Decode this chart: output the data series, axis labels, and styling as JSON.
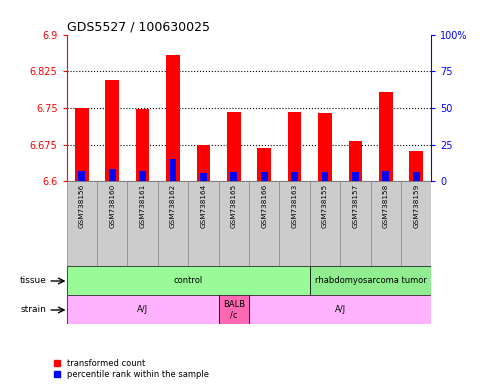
{
  "title": "GDS5527 / 100630025",
  "samples": [
    "GSM738156",
    "GSM738160",
    "GSM738161",
    "GSM738162",
    "GSM738164",
    "GSM738165",
    "GSM738166",
    "GSM738163",
    "GSM738155",
    "GSM738157",
    "GSM738158",
    "GSM738159"
  ],
  "red_values": [
    6.75,
    6.807,
    6.748,
    6.858,
    6.675,
    6.742,
    6.668,
    6.742,
    6.74,
    6.683,
    6.782,
    6.663
  ],
  "blue_values": [
    6.622,
    6.625,
    6.622,
    6.645,
    6.618,
    6.62,
    6.619,
    6.62,
    6.619,
    6.619,
    6.621,
    6.619
  ],
  "y_min": 6.6,
  "y_max": 6.9,
  "y_ticks_left": [
    6.6,
    6.675,
    6.75,
    6.825,
    6.9
  ],
  "y_ticks_right": [
    0,
    25,
    50,
    75,
    100
  ],
  "hlines": [
    6.675,
    6.75,
    6.825
  ],
  "tissue_items": [
    {
      "label": "control",
      "start": 0,
      "end": 8,
      "color": "#98FB98"
    },
    {
      "label": "rhabdomyosarcoma tumor",
      "start": 8,
      "end": 12,
      "color": "#90EE90"
    }
  ],
  "strain_items": [
    {
      "label": "A/J",
      "start": 0,
      "end": 5,
      "color": "#FFB3FF"
    },
    {
      "label": "BALB\n/c",
      "start": 5,
      "end": 6,
      "color": "#FF69B4"
    },
    {
      "label": "A/J",
      "start": 6,
      "end": 12,
      "color": "#FFB3FF"
    }
  ],
  "tissue_row_label": "tissue",
  "strain_row_label": "strain",
  "legend_red": "transformed count",
  "legend_blue": "percentile rank within the sample",
  "bar_width": 0.45,
  "blue_bar_width": 0.22,
  "col_bg_color": "#CCCCCC",
  "col_border_color": "#888888",
  "title_fontsize": 9,
  "tick_fontsize": 7,
  "label_fontsize": 6,
  "legend_fontsize": 6
}
